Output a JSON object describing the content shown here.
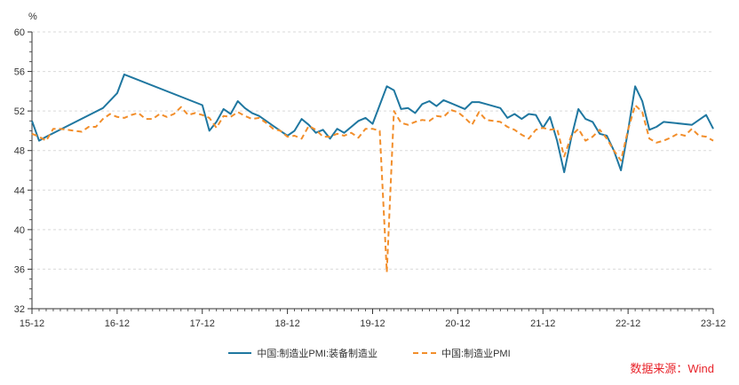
{
  "chart_data": {
    "type": "line",
    "ylabel": "%",
    "ylim": [
      32,
      60
    ],
    "yticks": [
      32,
      36,
      40,
      44,
      48,
      52,
      56,
      60
    ],
    "xlim": [
      0,
      96
    ],
    "xticks": [
      {
        "x": 0,
        "label": "15-12"
      },
      {
        "x": 12,
        "label": "16-12"
      },
      {
        "x": 24,
        "label": "17-12"
      },
      {
        "x": 36,
        "label": "18-12"
      },
      {
        "x": 48,
        "label": "19-12"
      },
      {
        "x": 60,
        "label": "20-12"
      },
      {
        "x": 72,
        "label": "21-12"
      },
      {
        "x": 84,
        "label": "22-12"
      },
      {
        "x": 96,
        "label": "23-12"
      }
    ],
    "grid": true,
    "legend_position": "bottom",
    "series": [
      {
        "name": "中国:制造业PMI:装备制造业",
        "color": "#1f77a0",
        "style": "solid",
        "points": [
          [
            0,
            51.0
          ],
          [
            1,
            49.0
          ],
          [
            2,
            49.4
          ],
          [
            10,
            52.3
          ],
          [
            12,
            53.8
          ],
          [
            13,
            55.7
          ],
          [
            24,
            52.6
          ],
          [
            25,
            50.0
          ],
          [
            26,
            50.9
          ],
          [
            27,
            52.2
          ],
          [
            28,
            51.7
          ],
          [
            29,
            53.0
          ],
          [
            30,
            52.3
          ],
          [
            31,
            51.8
          ],
          [
            32,
            51.5
          ],
          [
            33,
            51.0
          ],
          [
            34,
            50.5
          ],
          [
            35,
            50.0
          ],
          [
            36,
            49.5
          ],
          [
            37,
            50.0
          ],
          [
            38,
            51.2
          ],
          [
            39,
            50.6
          ],
          [
            40,
            49.8
          ],
          [
            41,
            50.1
          ],
          [
            42,
            49.2
          ],
          [
            43,
            50.2
          ],
          [
            44,
            49.8
          ],
          [
            45,
            50.4
          ],
          [
            46,
            51.0
          ],
          [
            47,
            51.3
          ],
          [
            48,
            50.7
          ],
          [
            49,
            52.6
          ],
          [
            50,
            54.5
          ],
          [
            51,
            54.1
          ],
          [
            52,
            52.2
          ],
          [
            53,
            52.3
          ],
          [
            54,
            51.8
          ],
          [
            55,
            52.7
          ],
          [
            56,
            53.0
          ],
          [
            57,
            52.5
          ],
          [
            58,
            53.1
          ],
          [
            59,
            52.8
          ],
          [
            60,
            52.5
          ],
          [
            61,
            52.2
          ],
          [
            62,
            52.9
          ],
          [
            63,
            52.9
          ],
          [
            64,
            52.7
          ],
          [
            65,
            52.5
          ],
          [
            66,
            52.3
          ],
          [
            67,
            51.3
          ],
          [
            68,
            51.7
          ],
          [
            69,
            51.2
          ],
          [
            70,
            51.7
          ],
          [
            71,
            51.6
          ],
          [
            72,
            50.3
          ],
          [
            73,
            51.4
          ],
          [
            74,
            49.0
          ],
          [
            75,
            45.8
          ],
          [
            76,
            49.3
          ],
          [
            77,
            52.2
          ],
          [
            78,
            51.2
          ],
          [
            79,
            50.9
          ],
          [
            80,
            49.7
          ],
          [
            81,
            49.5
          ],
          [
            82,
            48.0
          ],
          [
            83,
            46.0
          ],
          [
            84,
            50.0
          ],
          [
            85,
            54.5
          ],
          [
            86,
            53.0
          ],
          [
            87,
            50.1
          ],
          [
            88,
            50.4
          ],
          [
            89,
            50.9
          ],
          [
            93,
            50.6
          ],
          [
            95,
            51.6
          ],
          [
            96,
            50.2
          ]
        ]
      },
      {
        "name": "中国:制造业PMI",
        "color": "#f28e2b",
        "style": "dashed",
        "points": [
          [
            0,
            49.7
          ],
          [
            1,
            49.4
          ],
          [
            2,
            49.0
          ],
          [
            3,
            50.2
          ],
          [
            4,
            50.2
          ],
          [
            5,
            50.1
          ],
          [
            6,
            50.0
          ],
          [
            7,
            49.9
          ],
          [
            8,
            50.4
          ],
          [
            9,
            50.4
          ],
          [
            10,
            51.2
          ],
          [
            11,
            51.7
          ],
          [
            12,
            51.4
          ],
          [
            13,
            51.3
          ],
          [
            14,
            51.6
          ],
          [
            15,
            51.8
          ],
          [
            16,
            51.2
          ],
          [
            17,
            51.2
          ],
          [
            18,
            51.7
          ],
          [
            19,
            51.4
          ],
          [
            20,
            51.7
          ],
          [
            21,
            52.4
          ],
          [
            22,
            51.6
          ],
          [
            23,
            51.8
          ],
          [
            24,
            51.6
          ],
          [
            25,
            51.3
          ],
          [
            26,
            50.3
          ],
          [
            27,
            51.5
          ],
          [
            28,
            51.4
          ],
          [
            29,
            51.9
          ],
          [
            30,
            51.5
          ],
          [
            31,
            51.2
          ],
          [
            32,
            51.3
          ],
          [
            33,
            50.8
          ],
          [
            34,
            50.2
          ],
          [
            35,
            50.0
          ],
          [
            36,
            49.4
          ],
          [
            37,
            49.5
          ],
          [
            38,
            49.2
          ],
          [
            39,
            50.5
          ],
          [
            40,
            50.1
          ],
          [
            41,
            49.4
          ],
          [
            42,
            49.4
          ],
          [
            43,
            49.7
          ],
          [
            44,
            49.5
          ],
          [
            45,
            49.8
          ],
          [
            46,
            49.3
          ],
          [
            47,
            50.2
          ],
          [
            48,
            50.2
          ],
          [
            49,
            50.0
          ],
          [
            50,
            35.7
          ],
          [
            51,
            52.0
          ],
          [
            52,
            50.8
          ],
          [
            53,
            50.6
          ],
          [
            54,
            50.9
          ],
          [
            55,
            51.1
          ],
          [
            56,
            51.0
          ],
          [
            57,
            51.5
          ],
          [
            58,
            51.4
          ],
          [
            59,
            52.1
          ],
          [
            60,
            51.9
          ],
          [
            61,
            51.3
          ],
          [
            62,
            50.6
          ],
          [
            63,
            51.9
          ],
          [
            64,
            51.1
          ],
          [
            65,
            51.0
          ],
          [
            66,
            50.9
          ],
          [
            67,
            50.4
          ],
          [
            68,
            50.1
          ],
          [
            69,
            49.6
          ],
          [
            70,
            49.2
          ],
          [
            71,
            50.1
          ],
          [
            72,
            50.3
          ],
          [
            73,
            50.1
          ],
          [
            74,
            50.2
          ],
          [
            75,
            47.4
          ],
          [
            76,
            49.5
          ],
          [
            77,
            50.2
          ],
          [
            78,
            49.0
          ],
          [
            79,
            49.4
          ],
          [
            80,
            50.1
          ],
          [
            81,
            49.2
          ],
          [
            82,
            48.0
          ],
          [
            83,
            47.0
          ],
          [
            84,
            50.1
          ],
          [
            85,
            52.6
          ],
          [
            86,
            51.9
          ],
          [
            87,
            49.2
          ],
          [
            88,
            48.8
          ],
          [
            89,
            49.0
          ],
          [
            90,
            49.3
          ],
          [
            91,
            49.7
          ],
          [
            92,
            49.5
          ],
          [
            93,
            50.2
          ],
          [
            94,
            49.5
          ],
          [
            95,
            49.4
          ],
          [
            96,
            49.0
          ]
        ]
      }
    ]
  },
  "source_text": "数据来源：Wind"
}
